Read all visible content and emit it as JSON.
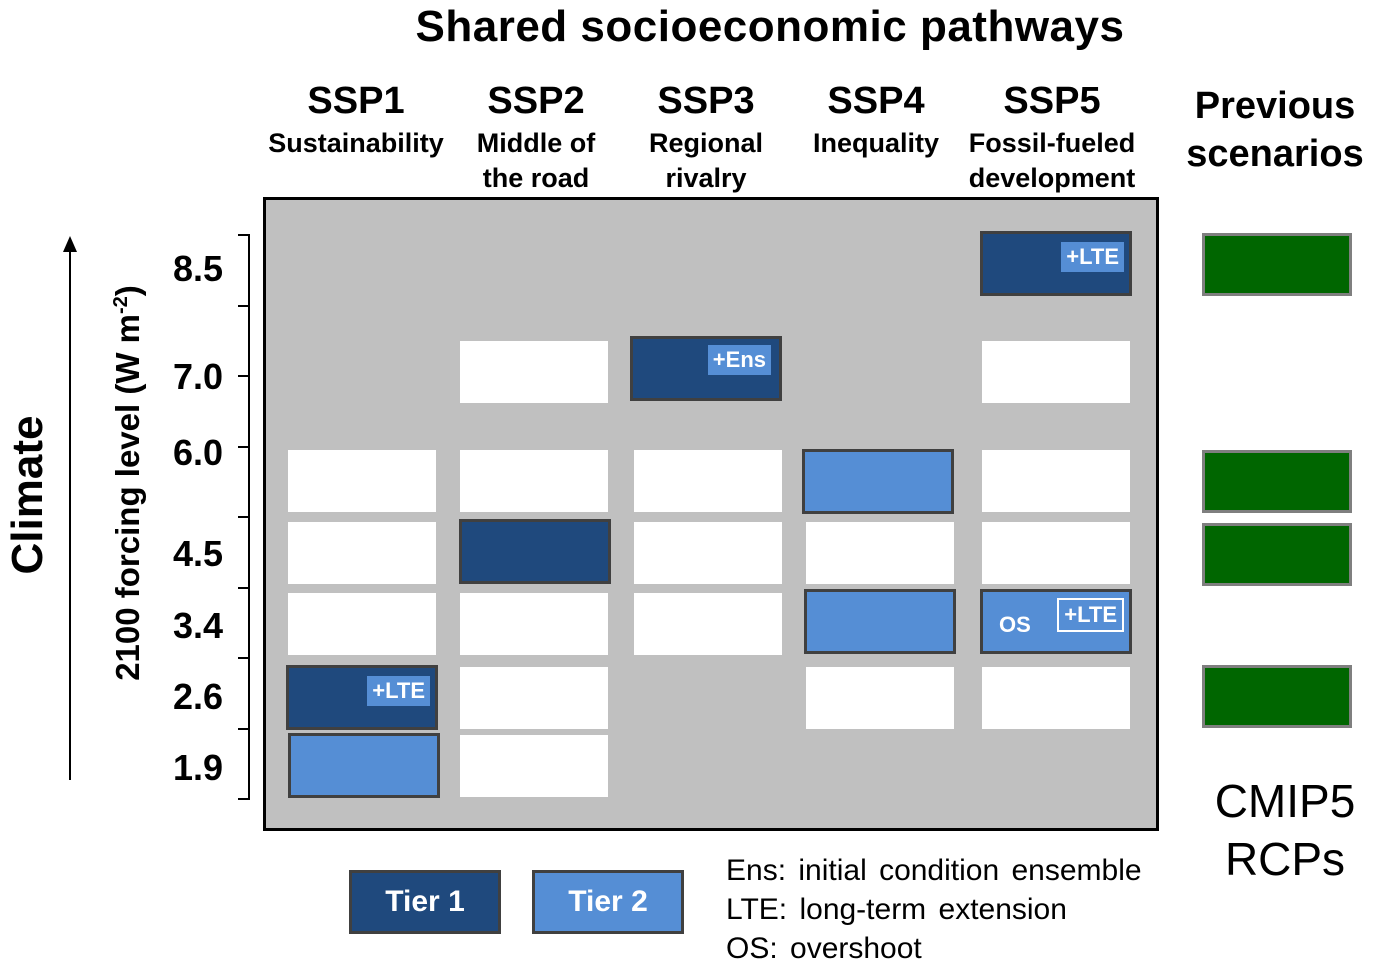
{
  "title": "Shared socioeconomic pathways",
  "colors": {
    "tier1": "#1f497d",
    "tier2": "#558ed5",
    "rcp": "#006600",
    "panel": "#c0c0c0"
  },
  "columns": [
    {
      "name": "SSP1",
      "subtitle": "Sustainability"
    },
    {
      "name": "SSP2",
      "subtitle": "Middle of\nthe   road"
    },
    {
      "name": "SSP3",
      "subtitle": "Regional\nrivalry"
    },
    {
      "name": "SSP4",
      "subtitle": "Inequality"
    },
    {
      "name": "SSP5",
      "subtitle": "Fossil-fueled\ndevelopment"
    }
  ],
  "previous_label": "Previous\nscenarios",
  "y_axis": {
    "title_main": "2100 forcing level (W m",
    "title_sup": "-2",
    "title_end": ")",
    "levels": [
      "8.5",
      "7.0",
      "6.0",
      "4.5",
      "3.4",
      "2.6",
      "1.9"
    ]
  },
  "climate_label": "Climate",
  "cells": {
    "ssp1": [
      "",
      "",
      "white",
      "white",
      "white",
      "tier1",
      "tier2"
    ],
    "ssp2": [
      "",
      "white",
      "white",
      "tier1",
      "white",
      "white",
      "white"
    ],
    "ssp3": [
      "",
      "tier1",
      "white",
      "white",
      "white",
      "",
      ""
    ],
    "ssp4": [
      "",
      "",
      "tier2",
      "white",
      "tier2",
      "white",
      ""
    ],
    "ssp5": [
      "tier1",
      "white",
      "white",
      "white",
      "tier2",
      "white",
      ""
    ]
  },
  "tags": {
    "ssp1_26": "+LTE",
    "ssp3_70": "+Ens",
    "ssp5_85": "+LTE",
    "ssp5_34_os": "OS",
    "ssp5_34": "+LTE"
  },
  "rcp_levels": [
    "8.5",
    "6.0",
    "4.5",
    "2.6"
  ],
  "cmip_label": "CMIP5\nRCPs",
  "legend": {
    "tier1": "Tier 1",
    "tier2": "Tier 2",
    "notes": [
      "Ens: initial condition ensemble",
      "LTE: long-term extension",
      "OS:  overshoot"
    ]
  }
}
